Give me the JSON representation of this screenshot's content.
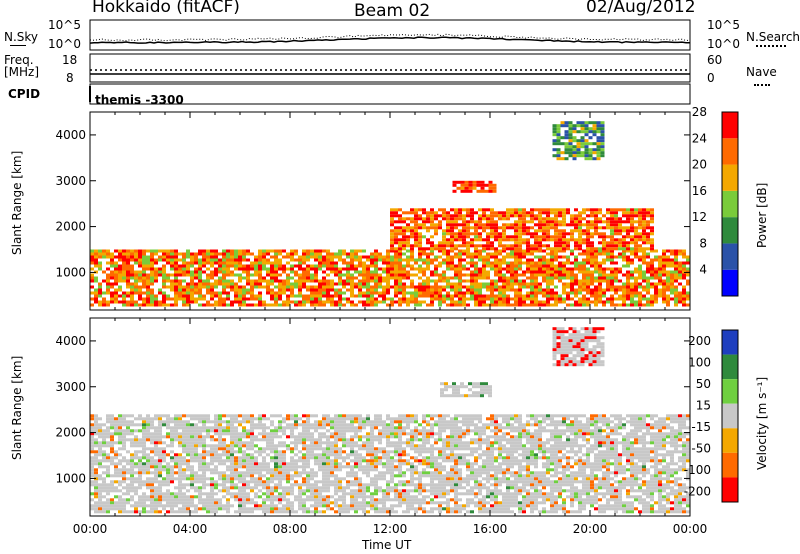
{
  "header": {
    "title": "Hokkaido (fitACF)",
    "beam": "Beam 02",
    "date": "02/Aug/2012"
  },
  "noise_panel": {
    "left_label": "N.Sky",
    "right_label": "N.Search",
    "left_ticks": [
      "10^5",
      "10^0"
    ],
    "right_ticks": [
      "10^5",
      "10^0"
    ]
  },
  "freq_panel": {
    "left_label_top": "Freq.",
    "left_label_unit": "[MHz]",
    "right_label": "Nave",
    "left_ticks": [
      "18",
      "8"
    ],
    "right_ticks": [
      "60",
      "0"
    ]
  },
  "cpid": {
    "label": "CPID",
    "value": "themis -3300"
  },
  "icons": {
    "sky_legend": "solid-line",
    "search_legend": "dotted-line",
    "nave_legend": "dotted-line"
  },
  "colors": {
    "power_scale": [
      "#0000ff",
      "#2a52a8",
      "#2f8a3c",
      "#7acb3a",
      "#f4a800",
      "#ff6a00",
      "#ff0000"
    ],
    "velocity_scale": [
      "#1f3fbf",
      "#2f8a3c",
      "#6fd040",
      "#c8c8c8",
      "#f4a800",
      "#ff6a00",
      "#ff0000"
    ]
  },
  "chart_data": [
    {
      "type": "heatmap",
      "panel": "power",
      "ylabel": "Slant Range [km]",
      "yticks": [
        "1000",
        "2000",
        "3000",
        "4000"
      ],
      "ylim": [
        180,
        4500
      ],
      "xlim": [
        0,
        24
      ],
      "colorbar": {
        "label": "Power [dB]",
        "ticks": [
          "4",
          "8",
          "12",
          "16",
          "20",
          "24",
          "28"
        ],
        "range": [
          0,
          30
        ]
      },
      "features": [
        {
          "start_h": 0.0,
          "end_h": 24.0,
          "lower_km": 300,
          "upper_km": 1500,
          "dominant_db": 22
        },
        {
          "start_h": 12.0,
          "end_h": 22.5,
          "lower_km": 1500,
          "upper_km": 2400,
          "dominant_db": 24
        },
        {
          "start_h": 14.5,
          "end_h": 16.2,
          "lower_km": 2800,
          "upper_km": 3000,
          "dominant_db": 28
        },
        {
          "start_h": 18.5,
          "end_h": 20.5,
          "lower_km": 3500,
          "upper_km": 4300,
          "dominant_db": 12
        }
      ]
    },
    {
      "type": "heatmap",
      "panel": "velocity",
      "ylabel": "Slant Range [km]",
      "yticks": [
        "1000",
        "2000",
        "3000",
        "4000"
      ],
      "ylim": [
        180,
        4500
      ],
      "xlim": [
        0,
        24
      ],
      "xticks": [
        "00:00",
        "04:00",
        "08:00",
        "12:00",
        "16:00",
        "20:00",
        "00:00"
      ],
      "xlabel": "Time UT",
      "colorbar": {
        "label": "Velocity [m s⁻¹]",
        "ticks": [
          "200",
          "100",
          "50",
          "15",
          "-15",
          "-50",
          "-100",
          "-200"
        ],
        "range": [
          -250,
          250
        ]
      },
      "features": [
        {
          "start_h": 0.0,
          "end_h": 24.0,
          "lower_km": 300,
          "upper_km": 2400,
          "dominant_ms": 0
        },
        {
          "start_h": 18.5,
          "end_h": 20.5,
          "lower_km": 3500,
          "upper_km": 4300,
          "dominant_ms": -200
        },
        {
          "start_h": 14.0,
          "end_h": 16.0,
          "lower_km": 2800,
          "upper_km": 3100,
          "dominant_ms": 60
        }
      ]
    }
  ]
}
